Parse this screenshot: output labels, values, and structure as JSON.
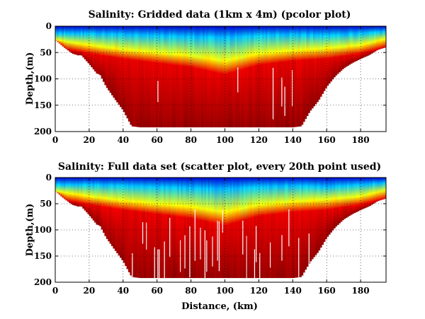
{
  "chart_data": [
    {
      "type": "heatmap",
      "title": "Salinity: Gridded data (1km x 4m) (pcolor plot)",
      "xlabel": "",
      "ylabel": "Depth,(m)",
      "xlim": [
        0,
        195
      ],
      "ylim": [
        200,
        0
      ],
      "xticks": [
        0,
        20,
        40,
        60,
        80,
        100,
        120,
        140,
        160,
        180
      ],
      "yticks": [
        0,
        50,
        100,
        150,
        200
      ],
      "grid": true,
      "colormap": "jet",
      "colormap_stops": [
        "#0000bf",
        "#0000ff",
        "#0080ff",
        "#00ffff",
        "#80ff80",
        "#ffff00",
        "#ff8000",
        "#ff0000",
        "#bf0000",
        "#800000"
      ],
      "background": "#ffffff",
      "bottom_depth_m": [
        [
          0,
          200
        ],
        [
          5,
          200
        ],
        [
          10,
          200
        ],
        [
          14,
          200
        ],
        [
          15,
          200
        ],
        [
          20,
          200
        ],
        [
          25,
          200
        ],
        [
          26,
          200
        ],
        [
          30,
          200
        ],
        [
          35,
          200
        ],
        [
          40,
          200
        ],
        [
          45,
          200
        ],
        [
          50,
          200
        ],
        [
          55,
          200
        ],
        [
          60,
          200
        ],
        [
          65,
          200
        ],
        [
          70,
          200
        ],
        [
          75,
          200
        ],
        [
          80,
          200
        ],
        [
          85,
          200
        ],
        [
          90,
          200
        ],
        [
          95,
          200
        ],
        [
          100,
          200
        ],
        [
          105,
          200
        ],
        [
          110,
          200
        ],
        [
          115,
          200
        ],
        [
          120,
          200
        ],
        [
          125,
          200
        ],
        [
          130,
          200
        ],
        [
          135,
          200
        ],
        [
          140,
          200
        ],
        [
          145,
          200
        ],
        [
          150,
          200
        ],
        [
          155,
          200
        ],
        [
          160,
          200
        ],
        [
          165,
          200
        ],
        [
          170,
          200
        ],
        [
          175,
          200
        ],
        [
          180,
          200
        ],
        [
          185,
          200
        ],
        [
          190,
          200
        ],
        [
          195,
          200
        ]
      ],
      "seafloor_profile_m": [
        [
          0,
          26
        ],
        [
          5,
          40
        ],
        [
          10,
          52
        ],
        [
          14,
          56
        ],
        [
          15,
          54
        ],
        [
          20,
          72
        ],
        [
          25,
          92
        ],
        [
          26,
          90
        ],
        [
          30,
          115
        ],
        [
          35,
          138
        ],
        [
          40,
          160
        ],
        [
          45,
          190
        ],
        [
          50,
          192
        ],
        [
          55,
          192
        ],
        [
          60,
          192
        ],
        [
          65,
          192
        ],
        [
          70,
          192
        ],
        [
          75,
          192
        ],
        [
          80,
          192
        ],
        [
          85,
          192
        ],
        [
          90,
          192
        ],
        [
          95,
          192
        ],
        [
          100,
          192
        ],
        [
          105,
          192
        ],
        [
          110,
          192
        ],
        [
          115,
          192
        ],
        [
          120,
          192
        ],
        [
          125,
          192
        ],
        [
          130,
          192
        ],
        [
          135,
          192
        ],
        [
          140,
          192
        ],
        [
          145,
          190
        ],
        [
          150,
          162
        ],
        [
          155,
          142
        ],
        [
          160,
          115
        ],
        [
          165,
          95
        ],
        [
          170,
          80
        ],
        [
          175,
          70
        ],
        [
          180,
          62
        ],
        [
          185,
          55
        ],
        [
          190,
          45
        ],
        [
          195,
          40
        ]
      ],
      "salinity_shading_depth_m": {
        "deep_blue_to_cyan": [
          [
            0,
            14
          ],
          [
            20,
            14
          ],
          [
            40,
            16
          ],
          [
            60,
            18
          ],
          [
            80,
            20
          ],
          [
            100,
            22
          ],
          [
            120,
            18
          ],
          [
            140,
            16
          ],
          [
            160,
            18
          ],
          [
            180,
            14
          ],
          [
            195,
            10
          ]
        ],
        "cyan_to_yellow": [
          [
            0,
            26
          ],
          [
            20,
            36
          ],
          [
            40,
            44
          ],
          [
            60,
            50
          ],
          [
            80,
            56
          ],
          [
            100,
            66
          ],
          [
            120,
            52
          ],
          [
            140,
            46
          ],
          [
            160,
            42
          ],
          [
            180,
            36
          ],
          [
            195,
            24
          ]
        ],
        "yellow_to_red": [
          [
            0,
            40
          ],
          [
            20,
            52
          ],
          [
            40,
            62
          ],
          [
            60,
            70
          ],
          [
            80,
            78
          ],
          [
            100,
            92
          ],
          [
            120,
            74
          ],
          [
            140,
            66
          ],
          [
            160,
            62
          ],
          [
            180,
            52
          ],
          [
            195,
            40
          ]
        ]
      }
    },
    {
      "type": "scatter",
      "title": "Salinity: Full data set (scatter plot, every 20th point used)",
      "xlabel": "Distance, (km)",
      "ylabel": "Depth,(m)",
      "xlim": [
        0,
        195
      ],
      "ylim": [
        200,
        0
      ],
      "xticks": [
        0,
        20,
        40,
        60,
        80,
        100,
        120,
        140,
        160,
        180
      ],
      "yticks": [
        0,
        50,
        100,
        150,
        200
      ],
      "grid": true,
      "colormap": "jet",
      "colormap_stops": [
        "#0000bf",
        "#0000ff",
        "#0080ff",
        "#00ffff",
        "#80ff80",
        "#ffff00",
        "#ff8000",
        "#ff0000",
        "#bf0000",
        "#800000"
      ],
      "background": "#ffffff",
      "seafloor_profile_m": [
        [
          0,
          26
        ],
        [
          5,
          40
        ],
        [
          10,
          52
        ],
        [
          14,
          56
        ],
        [
          15,
          54
        ],
        [
          20,
          72
        ],
        [
          25,
          92
        ],
        [
          26,
          90
        ],
        [
          30,
          115
        ],
        [
          35,
          138
        ],
        [
          40,
          160
        ],
        [
          45,
          190
        ],
        [
          50,
          192
        ],
        [
          55,
          192
        ],
        [
          60,
          192
        ],
        [
          65,
          192
        ],
        [
          70,
          192
        ],
        [
          75,
          192
        ],
        [
          80,
          192
        ],
        [
          85,
          192
        ],
        [
          90,
          192
        ],
        [
          95,
          192
        ],
        [
          100,
          192
        ],
        [
          105,
          192
        ],
        [
          110,
          192
        ],
        [
          115,
          192
        ],
        [
          120,
          192
        ],
        [
          125,
          192
        ],
        [
          130,
          192
        ],
        [
          135,
          192
        ],
        [
          140,
          192
        ],
        [
          145,
          190
        ],
        [
          150,
          162
        ],
        [
          155,
          142
        ],
        [
          160,
          115
        ],
        [
          165,
          95
        ],
        [
          170,
          80
        ],
        [
          175,
          70
        ],
        [
          180,
          62
        ],
        [
          185,
          55
        ],
        [
          190,
          45
        ],
        [
          195,
          40
        ]
      ],
      "salinity_shading_depth_m": {
        "deep_blue_to_cyan": [
          [
            0,
            14
          ],
          [
            20,
            14
          ],
          [
            40,
            16
          ],
          [
            60,
            18
          ],
          [
            80,
            20
          ],
          [
            100,
            22
          ],
          [
            120,
            18
          ],
          [
            140,
            16
          ],
          [
            160,
            18
          ],
          [
            180,
            14
          ],
          [
            195,
            10
          ]
        ],
        "cyan_to_yellow": [
          [
            0,
            26
          ],
          [
            20,
            36
          ],
          [
            40,
            44
          ],
          [
            60,
            50
          ],
          [
            80,
            56
          ],
          [
            100,
            66
          ],
          [
            120,
            52
          ],
          [
            140,
            46
          ],
          [
            160,
            42
          ],
          [
            180,
            36
          ],
          [
            195,
            24
          ]
        ],
        "yellow_to_red": [
          [
            0,
            40
          ],
          [
            20,
            52
          ],
          [
            40,
            62
          ],
          [
            60,
            70
          ],
          [
            80,
            78
          ],
          [
            100,
            92
          ],
          [
            120,
            74
          ],
          [
            140,
            66
          ],
          [
            160,
            62
          ],
          [
            180,
            52
          ],
          [
            195,
            40
          ]
        ]
      }
    }
  ]
}
